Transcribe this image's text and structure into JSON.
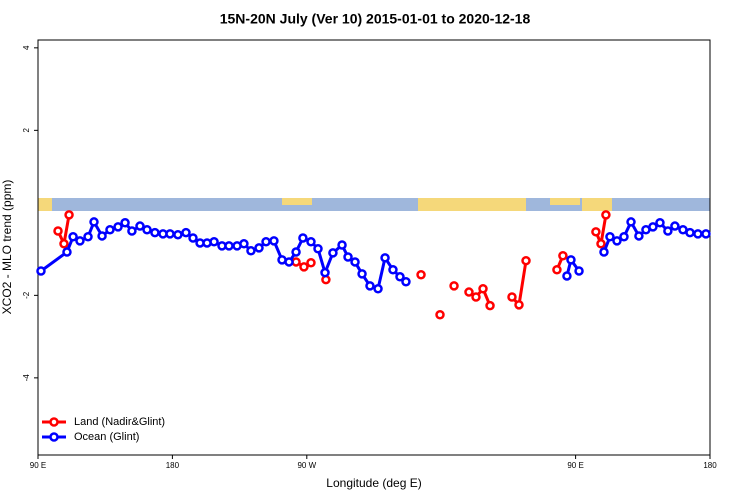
{
  "chart_data": {
    "type": "line",
    "title": "15N-20N July (Ver 10)   2015-01-01 to 2020-12-18",
    "x_label": "Longitude (deg E)",
    "y_label": "XCO2 - MLO trend (ppm)",
    "xlim": [
      90,
      540
    ],
    "ylim": [
      -5.87,
      4.19
    ],
    "xticks": [
      {
        "value": 90,
        "label": "90 E"
      },
      180,
      {
        "value": 270,
        "label": "90 W"
      },
      {
        "value": 450,
        "label": "90 E"
      },
      {
        "value": 540,
        "label": "180"
      }
    ],
    "yticks": [
      -4,
      -2,
      2,
      4
    ],
    "legend": "bottom-left",
    "series": [
      {
        "name": "Land (Nadir&Glint)",
        "color": "#ff0000",
        "x": [
          103.4,
          107.4,
          110.8,
          null,
          262.8,
          268.1,
          272.8,
          null,
          282.8,
          null,
          346.5,
          null,
          359.2,
          null,
          368.6,
          null,
          378.6,
          383.3,
          388.0,
          392.7,
          null,
          407.4,
          412.1,
          416.8,
          null,
          437.5,
          441.5,
          null,
          463.6,
          467.0,
          470.3
        ],
        "values": [
          -0.44,
          -0.75,
          -0.05,
          null,
          -1.19,
          -1.31,
          -1.21,
          null,
          -1.62,
          null,
          -1.5,
          null,
          -2.47,
          null,
          -1.77,
          null,
          -1.92,
          -2.04,
          -1.84,
          -2.25,
          null,
          -2.04,
          -2.23,
          -1.16,
          null,
          -1.38,
          -1.04,
          null,
          -0.46,
          -0.75,
          -0.05
        ]
      },
      {
        "name": "Ocean (Glint)",
        "color": "#0000ff",
        "x": [
          92.0,
          109.4,
          113.5,
          118.1,
          123.5,
          127.5,
          132.9,
          138.2,
          143.6,
          148.3,
          152.9,
          158.3,
          163.0,
          168.3,
          173.7,
          178.4,
          183.7,
          189.1,
          193.8,
          198.5,
          203.2,
          207.9,
          213.2,
          217.9,
          223.3,
          227.9,
          232.6,
          238.0,
          242.7,
          248.0,
          253.4,
          258.1,
          262.8,
          267.4,
          272.8,
          277.5,
          282.2,
          287.5,
          293.6,
          297.6,
          302.3,
          307.0,
          312.3,
          317.7,
          322.4,
          327.7,
          332.4,
          336.4,
          null,
          444.2,
          446.9,
          452.3,
          null,
          469.0,
          473.0,
          477.7,
          482.4,
          487.1,
          492.4,
          497.1,
          501.8,
          506.5,
          511.8,
          516.5,
          521.9,
          526.6,
          531.9,
          537.3
        ],
        "values": [
          -1.41,
          -0.95,
          -0.58,
          -0.68,
          -0.58,
          -0.22,
          -0.56,
          -0.41,
          -0.34,
          -0.24,
          -0.44,
          -0.32,
          -0.41,
          -0.48,
          -0.51,
          -0.51,
          -0.53,
          -0.48,
          -0.61,
          -0.73,
          -0.73,
          -0.7,
          -0.8,
          -0.8,
          -0.8,
          -0.75,
          -0.92,
          -0.85,
          -0.7,
          -0.68,
          -1.14,
          -1.19,
          -0.95,
          -0.61,
          -0.7,
          -0.87,
          -1.45,
          -0.97,
          -0.78,
          -1.07,
          -1.19,
          -1.48,
          -1.77,
          -1.84,
          -1.09,
          -1.38,
          -1.55,
          -1.67,
          null,
          -1.53,
          -1.14,
          -1.41,
          null,
          -0.95,
          -0.58,
          -0.68,
          -0.58,
          -0.22,
          -0.56,
          -0.41,
          -0.34,
          -0.24,
          -0.44,
          -0.32,
          -0.41,
          -0.48,
          -0.51,
          -0.51
        ]
      }
    ]
  }
}
